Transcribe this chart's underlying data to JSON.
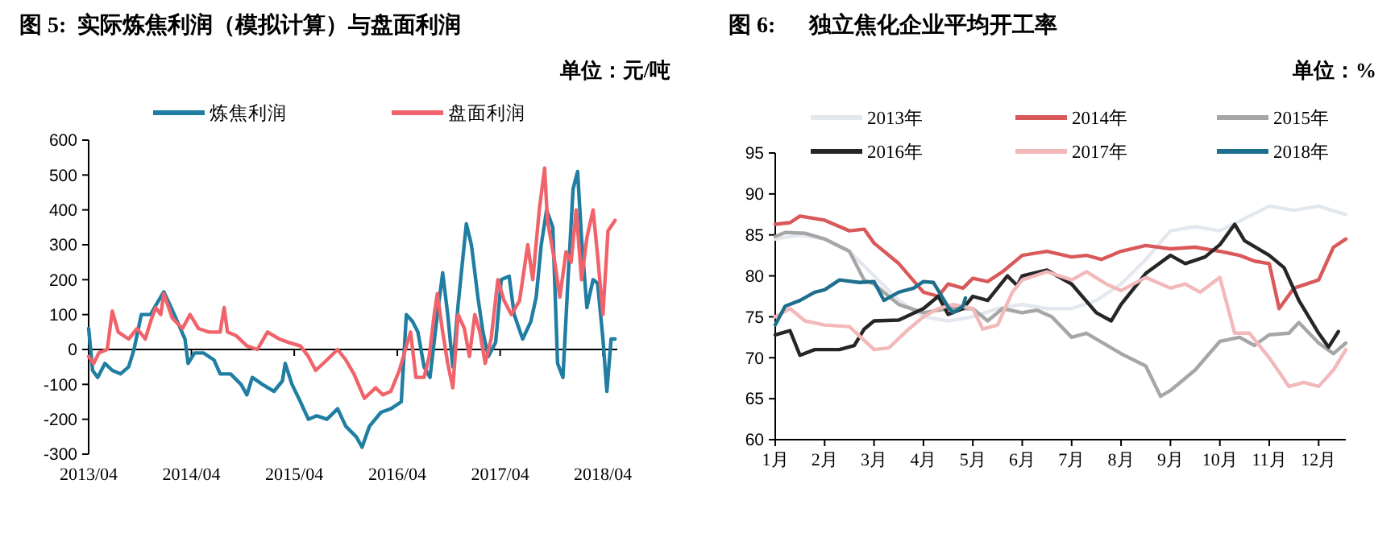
{
  "chart_data": [
    {
      "type": "line",
      "title": "图 5:  实际炼焦利润（模拟计算）与盘面利润",
      "subtitle": "单位：元/吨",
      "legend": "top",
      "xlim": [
        "2013-04-01",
        "2018-05-22"
      ],
      "xticks": [
        {
          "value": "2013-04",
          "label": "2013/04"
        },
        {
          "value": "2014-04",
          "label": "2014/04"
        },
        {
          "value": "2015-04",
          "label": "2015/04"
        },
        {
          "value": "2016-04",
          "label": "2016/04"
        },
        {
          "value": "2017-04",
          "label": "2017/04"
        },
        {
          "value": "2018-04",
          "label": "2018/04"
        }
      ],
      "ylim": [
        -300,
        600
      ],
      "yticks": [
        -300,
        -200,
        -100,
        0,
        100,
        200,
        300,
        400,
        500,
        600
      ],
      "series": [
        {
          "name": "炼焦利润",
          "color": "#1f7ea1",
          "x": [
            "2013-04-01",
            "2013-04-15",
            "2013-05-03",
            "2013-05-29",
            "2013-06-24",
            "2013-07-23",
            "2013-08-21",
            "2013-09-09",
            "2013-10-05",
            "2013-11-07",
            "2013-11-28",
            "2013-12-24",
            "2014-01-19",
            "2014-02-10",
            "2014-03-09",
            "2014-03-20",
            "2014-04-12",
            "2014-05-14",
            "2014-06-20",
            "2014-07-12",
            "2014-08-18",
            "2014-09-24",
            "2014-10-15",
            "2014-11-03",
            "2014-12-09",
            "2015-01-19",
            "2015-02-18",
            "2015-02-28",
            "2015-03-24",
            "2015-04-23",
            "2015-05-21",
            "2015-06-20",
            "2015-07-26",
            "2015-09-02",
            "2015-10-01",
            "2015-11-07",
            "2015-11-28",
            "2015-12-24",
            "2016-02-03",
            "2016-03-09",
            "2016-04-15",
            "2016-05-03",
            "2016-05-25",
            "2016-06-13",
            "2016-07-05",
            "2016-07-26",
            "2016-08-21",
            "2016-09-09",
            "2016-09-27",
            "2016-10-15",
            "2016-11-03",
            "2016-12-02",
            "2016-12-20",
            "2017-01-12",
            "2017-01-30",
            "2017-02-18",
            "2017-03-16",
            "2017-04-05",
            "2017-05-03",
            "2017-05-21",
            "2017-06-20",
            "2017-07-19",
            "2017-08-07",
            "2017-08-25",
            "2017-09-13",
            "2017-10-05",
            "2017-10-22",
            "2017-11-10",
            "2017-11-28",
            "2017-12-16",
            "2018-01-01",
            "2018-01-15",
            "2018-02-03",
            "2018-02-25",
            "2018-03-13",
            "2018-04-01",
            "2018-04-15",
            "2018-04-30",
            "2018-05-14"
          ],
          "values": [
            60,
            -60,
            -80,
            -40,
            -60,
            -70,
            -50,
            0,
            100,
            100,
            130,
            165,
            120,
            80,
            30,
            -40,
            -10,
            -10,
            -30,
            -70,
            -70,
            -100,
            -130,
            -80,
            -100,
            -120,
            -90,
            -40,
            -100,
            -150,
            -200,
            -190,
            -200,
            -170,
            -220,
            -250,
            -280,
            -220,
            -180,
            -170,
            -150,
            100,
            80,
            50,
            -50,
            -80,
            100,
            220,
            100,
            -50,
            130,
            360,
            300,
            150,
            50,
            -20,
            20,
            200,
            210,
            100,
            30,
            80,
            150,
            300,
            400,
            350,
            -40,
            -80,
            200,
            460,
            510,
            320,
            120,
            200,
            190,
            30,
            -120,
            30,
            30
          ]
        },
        {
          "name": "盘面利润",
          "color": "#f0636a",
          "x": [
            "2013-04-01",
            "2013-04-19",
            "2013-05-07",
            "2013-06-06",
            "2013-06-24",
            "2013-07-15",
            "2013-08-21",
            "2013-09-20",
            "2013-10-19",
            "2013-11-07",
            "2013-11-25",
            "2013-12-13",
            "2013-12-24",
            "2014-01-23",
            "2014-02-28",
            "2014-03-27",
            "2014-04-26",
            "2014-06-02",
            "2014-07-12",
            "2014-07-26",
            "2014-08-07",
            "2014-09-06",
            "2014-10-15",
            "2014-11-21",
            "2014-12-27",
            "2015-02-07",
            "2015-03-13",
            "2015-04-23",
            "2015-05-21",
            "2015-06-16",
            "2015-07-26",
            "2015-09-02",
            "2015-10-01",
            "2015-10-30",
            "2015-12-06",
            "2016-01-15",
            "2016-02-10",
            "2016-03-09",
            "2016-04-08",
            "2016-04-26",
            "2016-05-18",
            "2016-06-06",
            "2016-07-05",
            "2016-07-23",
            "2016-08-10",
            "2016-08-21",
            "2016-09-09",
            "2016-09-27",
            "2016-10-15",
            "2016-11-03",
            "2016-11-25",
            "2016-12-13",
            "2017-01-01",
            "2017-01-19",
            "2017-02-07",
            "2017-02-28",
            "2017-03-24",
            "2017-04-15",
            "2017-05-11",
            "2017-06-09",
            "2017-07-08",
            "2017-07-26",
            "2017-08-18",
            "2017-09-06",
            "2017-09-16",
            "2017-10-12",
            "2017-10-30",
            "2017-11-21",
            "2017-12-09",
            "2017-12-27",
            "2018-01-15",
            "2018-02-03",
            "2018-02-25",
            "2018-03-13",
            "2018-04-01",
            "2018-04-19",
            "2018-05-14"
          ],
          "values": [
            -20,
            -40,
            -10,
            0,
            110,
            50,
            30,
            60,
            30,
            80,
            120,
            100,
            160,
            90,
            60,
            100,
            60,
            50,
            50,
            120,
            50,
            40,
            10,
            0,
            50,
            30,
            20,
            10,
            -20,
            -60,
            -30,
            0,
            -30,
            -70,
            -140,
            -110,
            -130,
            -120,
            -60,
            -10,
            50,
            -80,
            -80,
            -20,
            100,
            160,
            50,
            -40,
            -110,
            100,
            60,
            -20,
            100,
            50,
            -40,
            30,
            200,
            140,
            100,
            140,
            300,
            200,
            400,
            520,
            370,
            250,
            150,
            280,
            250,
            400,
            200,
            320,
            400,
            270,
            100,
            340,
            370
          ]
        }
      ]
    },
    {
      "type": "line",
      "title": "图 6:      独立焦化企业平均开工率",
      "subtitle": "单位：%",
      "legend": "top",
      "xlim": [
        1,
        12.55
      ],
      "xticks": [
        {
          "value": 1,
          "label": "1月"
        },
        {
          "value": 2,
          "label": "2月"
        },
        {
          "value": 3,
          "label": "3月"
        },
        {
          "value": 4,
          "label": "4月"
        },
        {
          "value": 5,
          "label": "5月"
        },
        {
          "value": 6,
          "label": "6月"
        },
        {
          "value": 7,
          "label": "7月"
        },
        {
          "value": 8,
          "label": "8月"
        },
        {
          "value": 9,
          "label": "9月"
        },
        {
          "value": 10,
          "label": "10月"
        },
        {
          "value": 11,
          "label": "11月"
        },
        {
          "value": 12,
          "label": "12月"
        }
      ],
      "ylim": [
        60,
        95
      ],
      "yticks": [
        60,
        65,
        70,
        75,
        80,
        85,
        90,
        95
      ],
      "series": [
        {
          "name": "2013年",
          "color": "#e3e8ee",
          "x": [
            1,
            1.5,
            2,
            2.5,
            3,
            3.5,
            4,
            4.5,
            5,
            5.5,
            6,
            6.5,
            7,
            7.5,
            8,
            8.5,
            9,
            9.5,
            10,
            10.5,
            11,
            11.5,
            12,
            12.55
          ],
          "values": [
            84.5,
            85,
            84.5,
            83,
            80,
            77,
            75,
            74.5,
            75,
            76,
            76.5,
            76,
            76,
            77,
            79,
            82,
            85.5,
            86,
            85.5,
            87,
            88.5,
            88,
            88.5,
            87.5
          ]
        },
        {
          "name": "2014年",
          "color": "#d9585a",
          "x": [
            1,
            1.3,
            1.5,
            2,
            2.5,
            2.8,
            3,
            3.5,
            4,
            4.3,
            4.5,
            4.8,
            5,
            5.3,
            5.6,
            6,
            6.5,
            7,
            7.3,
            7.6,
            8,
            8.5,
            9,
            9.5,
            10,
            10.4,
            10.7,
            11,
            11.2,
            11.5,
            12,
            12.3,
            12.55
          ],
          "values": [
            86.3,
            86.5,
            87.3,
            86.8,
            85.5,
            85.7,
            84,
            81.5,
            78,
            77.5,
            79,
            78.5,
            79.7,
            79.3,
            80.5,
            82.5,
            83,
            82.3,
            82.5,
            82,
            83,
            83.7,
            83.3,
            83.5,
            83,
            82.5,
            81.8,
            81.5,
            76,
            78.5,
            79.5,
            83.5,
            84.5
          ]
        },
        {
          "name": "2015年",
          "color": "#a6a6a6",
          "x": [
            1,
            1.2,
            1.6,
            2,
            2.5,
            2.8,
            3,
            3.5,
            4,
            4.5,
            5,
            5.3,
            5.6,
            6,
            6.3,
            6.6,
            7,
            7.3,
            8,
            8.5,
            8.8,
            9,
            9.5,
            10,
            10.4,
            10.7,
            11,
            11.4,
            11.6,
            12,
            12.3,
            12.55
          ],
          "values": [
            84.8,
            85.3,
            85.2,
            84.5,
            83,
            79.5,
            79,
            76.5,
            75.5,
            76,
            76,
            74.5,
            76,
            75.5,
            75.8,
            75,
            72.5,
            73,
            70.5,
            69,
            65.3,
            66,
            68.5,
            72,
            72.5,
            71.5,
            72.8,
            73,
            74.3,
            71.8,
            70.5,
            71.8
          ]
        },
        {
          "name": "2016年",
          "color": "#262626",
          "x": [
            1,
            1.3,
            1.5,
            1.8,
            2,
            2.3,
            2.6,
            2.8,
            3,
            3.5,
            4,
            4.3,
            4.5,
            4.8,
            5,
            5.3,
            5.7,
            5.9,
            6,
            6.5,
            7,
            7.5,
            7.8,
            8,
            8.5,
            9,
            9.3,
            9.7,
            10,
            10.3,
            10.5,
            11,
            11.3,
            11.6,
            12,
            12.2,
            12.4
          ],
          "values": [
            72.8,
            73.3,
            70.3,
            71,
            71,
            71,
            71.5,
            73.5,
            74.5,
            74.6,
            76,
            77.5,
            75.3,
            76,
            77.5,
            77,
            80,
            78.8,
            80,
            80.7,
            79,
            75.5,
            74.5,
            76.5,
            80.3,
            82.5,
            81.5,
            82.3,
            83.8,
            86.3,
            84.3,
            82.5,
            81,
            77,
            73,
            71.3,
            73.2
          ]
        },
        {
          "name": "2017年",
          "color": "#f2b8ba",
          "x": [
            1,
            1.3,
            1.6,
            2,
            2.5,
            3,
            3.3,
            3.7,
            4,
            4.3,
            4.6,
            5,
            5.2,
            5.5,
            5.8,
            6,
            6.5,
            7,
            7.3,
            7.7,
            8,
            8.5,
            9,
            9.3,
            9.6,
            10,
            10.3,
            10.6,
            11,
            11.4,
            11.7,
            12,
            12.3,
            12.55
          ],
          "values": [
            75,
            76,
            74.5,
            74,
            73.8,
            71,
            71.2,
            73.5,
            75,
            76,
            76.5,
            76,
            73.5,
            74,
            78,
            79.5,
            80.5,
            79.5,
            80.5,
            79,
            78.2,
            79.8,
            78.5,
            79,
            78,
            79.8,
            73,
            73,
            70,
            66.5,
            67,
            66.5,
            68.5,
            71
          ]
        },
        {
          "name": "2018年",
          "color": "#1e6f8e",
          "x": [
            1,
            1.2,
            1.5,
            1.8,
            2,
            2.3,
            2.7,
            3,
            3.2,
            3.5,
            3.8,
            4,
            4.2,
            4.5,
            4.6,
            4.8,
            4.85
          ],
          "values": [
            74,
            76.3,
            77,
            78,
            78.3,
            79.5,
            79.2,
            79.3,
            77,
            78,
            78.5,
            79.3,
            79.2,
            76.2,
            75.5,
            76.3,
            77.3
          ]
        }
      ]
    }
  ]
}
